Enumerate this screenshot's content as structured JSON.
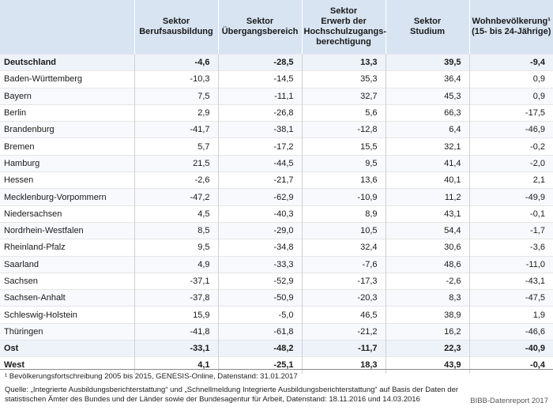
{
  "headers": [
    "",
    "Sektor\nBerufsausbildung",
    "Sektor\nÜbergangsbereich",
    "Sektor\nErwerb der\nHochschulzugangs-\nberechtigung",
    "Sektor\nStudium",
    "Wohnbevölkerung¹\n(15- bis 24-Jährige)"
  ],
  "rows": [
    {
      "name": "Deutschland",
      "v": [
        "-4,6",
        "-28,5",
        "13,3",
        "39,5",
        "-9,4"
      ],
      "style": "hl"
    },
    {
      "name": "Baden-Württemberg",
      "v": [
        "-10,3",
        "-14,5",
        "35,3",
        "36,4",
        "0,9"
      ],
      "style": ""
    },
    {
      "name": "Bayern",
      "v": [
        "7,5",
        "-11,1",
        "32,7",
        "45,3",
        "0,9"
      ],
      "style": "alt"
    },
    {
      "name": "Berlin",
      "v": [
        "2,9",
        "-26,8",
        "5,6",
        "66,3",
        "-17,5"
      ],
      "style": ""
    },
    {
      "name": "Brandenburg",
      "v": [
        "-41,7",
        "-38,1",
        "-12,8",
        "6,4",
        "-46,9"
      ],
      "style": "alt"
    },
    {
      "name": "Bremen",
      "v": [
        "5,7",
        "-17,2",
        "15,5",
        "32,1",
        "-0,2"
      ],
      "style": ""
    },
    {
      "name": "Hamburg",
      "v": [
        "21,5",
        "-44,5",
        "9,5",
        "41,4",
        "-2,0"
      ],
      "style": "alt"
    },
    {
      "name": "Hessen",
      "v": [
        "-2,6",
        "-21,7",
        "13,6",
        "40,1",
        "2,1"
      ],
      "style": ""
    },
    {
      "name": "Mecklenburg-Vorpommern",
      "v": [
        "-47,2",
        "-62,9",
        "-10,9",
        "11,2",
        "-49,9"
      ],
      "style": "alt"
    },
    {
      "name": "Niedersachsen",
      "v": [
        "4,5",
        "-40,3",
        "8,9",
        "43,1",
        "-0,1"
      ],
      "style": ""
    },
    {
      "name": "Nordrhein-Westfalen",
      "v": [
        "8,5",
        "-29,0",
        "10,5",
        "54,4",
        "-1,7"
      ],
      "style": "alt"
    },
    {
      "name": "Rheinland-Pfalz",
      "v": [
        "9,5",
        "-34,8",
        "32,4",
        "30,6",
        "-3,6"
      ],
      "style": ""
    },
    {
      "name": "Saarland",
      "v": [
        "4,9",
        "-33,3",
        "-7,6",
        "48,6",
        "-11,0"
      ],
      "style": "alt"
    },
    {
      "name": "Sachsen",
      "v": [
        "-37,1",
        "-52,9",
        "-17,3",
        "-2,6",
        "-43,1"
      ],
      "style": ""
    },
    {
      "name": "Sachsen-Anhalt",
      "v": [
        "-37,8",
        "-50,9",
        "-20,3",
        "8,3",
        "-47,5"
      ],
      "style": "alt"
    },
    {
      "name": "Schleswig-Holstein",
      "v": [
        "15,9",
        "-5,0",
        "46,5",
        "38,9",
        "1,9"
      ],
      "style": ""
    },
    {
      "name": "Thüringen",
      "v": [
        "-41,8",
        "-61,8",
        "-21,2",
        "16,2",
        "-46,6"
      ],
      "style": "alt"
    },
    {
      "name": "Ost",
      "v": [
        "-33,1",
        "-48,2",
        "-11,7",
        "22,3",
        "-40,9"
      ],
      "style": "hl"
    },
    {
      "name": "West",
      "v": [
        "4,1",
        "-25,1",
        "18,3",
        "43,9",
        "-0,4"
      ],
      "style": "bold"
    }
  ],
  "footnote": "¹ Bevölkerungsfortschreibung 2005 bis 2015, GENESIS-Online, Datenstand: 31.01.2017",
  "source": "Quelle: „Integrierte Ausbildungsberichterstattung“ und „Schnellmeldung Integrierte Ausbildungsberichterstattung“ auf Basis der Daten der statistischen Ämter des Bundes und der Länder sowie der Bundesagentur für Arbeit, Datenstand: 18.11.2016 und 14.03.2016",
  "brand": "BIBB-Datenreport 2017"
}
